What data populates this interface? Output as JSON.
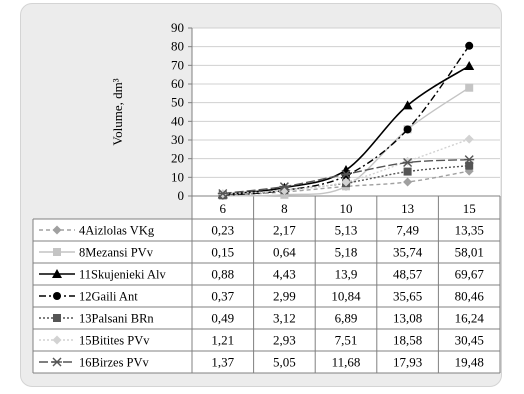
{
  "chart_data": {
    "type": "line",
    "ylabel": "Volume, dm³",
    "x": [
      "6",
      "8",
      "10",
      "13",
      "15"
    ],
    "ylim": [
      0,
      90
    ],
    "yticks": [
      0,
      10,
      20,
      30,
      40,
      50,
      60,
      70,
      80,
      90
    ],
    "grid": true,
    "legend": "data-table-left",
    "series": [
      {
        "name": "4Aizlolas VKg",
        "values": [
          0.23,
          2.17,
          5.13,
          7.49,
          13.35
        ],
        "labels": [
          "0,23",
          "2,17",
          "5,13",
          "7,49",
          "13,35"
        ],
        "color": "#a0a0a0",
        "dash": "4,3",
        "marker": "diamond"
      },
      {
        "name": "8Mezansi PVv",
        "values": [
          0.15,
          0.64,
          5.18,
          35.74,
          58.01
        ],
        "labels": [
          "0,15",
          "0,64",
          "5,18",
          "35,74",
          "58,01"
        ],
        "color": "#c4c4c4",
        "dash": "",
        "marker": "square"
      },
      {
        "name": "11Skujenieki Alv",
        "values": [
          0.88,
          4.43,
          13.9,
          48.57,
          69.67
        ],
        "labels": [
          "0,88",
          "4,43",
          "13,9",
          "48,57",
          "69,67"
        ],
        "color": "#000000",
        "dash": "",
        "marker": "triangle"
      },
      {
        "name": "12Gaili Ant",
        "values": [
          0.37,
          2.99,
          10.84,
          35.65,
          80.46
        ],
        "labels": [
          "0,37",
          "2,99",
          "10,84",
          "35,65",
          "80,46"
        ],
        "color": "#000000",
        "dash": "7,3,2,3",
        "marker": "circle"
      },
      {
        "name": "13Palsani BRn",
        "values": [
          0.49,
          3.12,
          6.89,
          13.08,
          16.24
        ],
        "labels": [
          "0,49",
          "3,12",
          "6,89",
          "13,08",
          "16,24"
        ],
        "color": "#555555",
        "dash": "2,2",
        "marker": "square"
      },
      {
        "name": "15Bitites PVv",
        "values": [
          1.21,
          2.93,
          7.51,
          18.58,
          30.45
        ],
        "labels": [
          "1,21",
          "2,93",
          "7,51",
          "18,58",
          "30,45"
        ],
        "color": "#d2d2d2",
        "dash": "2,2",
        "marker": "diamond"
      },
      {
        "name": "16Birzes PVv",
        "values": [
          1.37,
          5.05,
          11.68,
          17.93,
          19.48
        ],
        "labels": [
          "1,37",
          "5,05",
          "11,68",
          "17,93",
          "19,48"
        ],
        "color": "#555555",
        "dash": "9,3",
        "marker": "star"
      }
    ]
  }
}
